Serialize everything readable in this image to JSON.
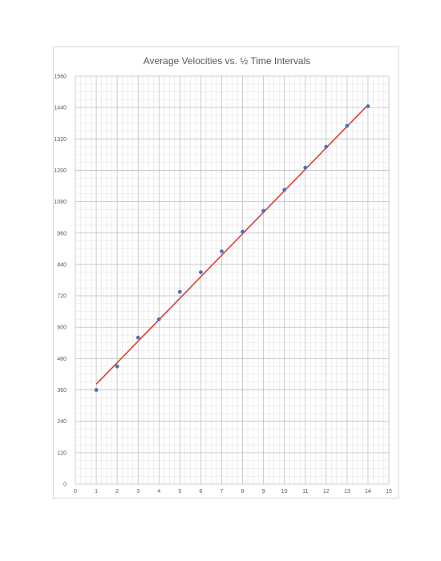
{
  "chart_data": {
    "type": "scatter",
    "title": "Average Velocities vs. ½ Time Intervals",
    "xlabel": "",
    "ylabel": "",
    "xlim": [
      0,
      15
    ],
    "ylim": [
      0,
      1560
    ],
    "x_ticks": [
      "0",
      "1",
      "2",
      "3",
      "4",
      "5",
      "6",
      "7",
      "8",
      "9",
      "10",
      "11",
      "12",
      "13",
      "14",
      "15"
    ],
    "y_ticks": [
      "0",
      "120",
      "240",
      "360",
      "480",
      "600",
      "720",
      "840",
      "960",
      "1080",
      "1200",
      "1320",
      "1440",
      "1560"
    ],
    "grid": true,
    "legend": "none",
    "series": [
      {
        "x": [
          1,
          2,
          3,
          4,
          5,
          6,
          7,
          8,
          9,
          10,
          11,
          12,
          13,
          14
        ],
        "y": [
          360,
          450,
          560,
          630,
          735,
          810,
          890,
          965,
          1045,
          1125,
          1210,
          1290,
          1370,
          1445
        ],
        "color": "#4472c4"
      }
    ],
    "trendline": {
      "type": "linear",
      "x": [
        1,
        14
      ],
      "y": [
        382,
        1450
      ],
      "color": "#e03c31"
    }
  }
}
